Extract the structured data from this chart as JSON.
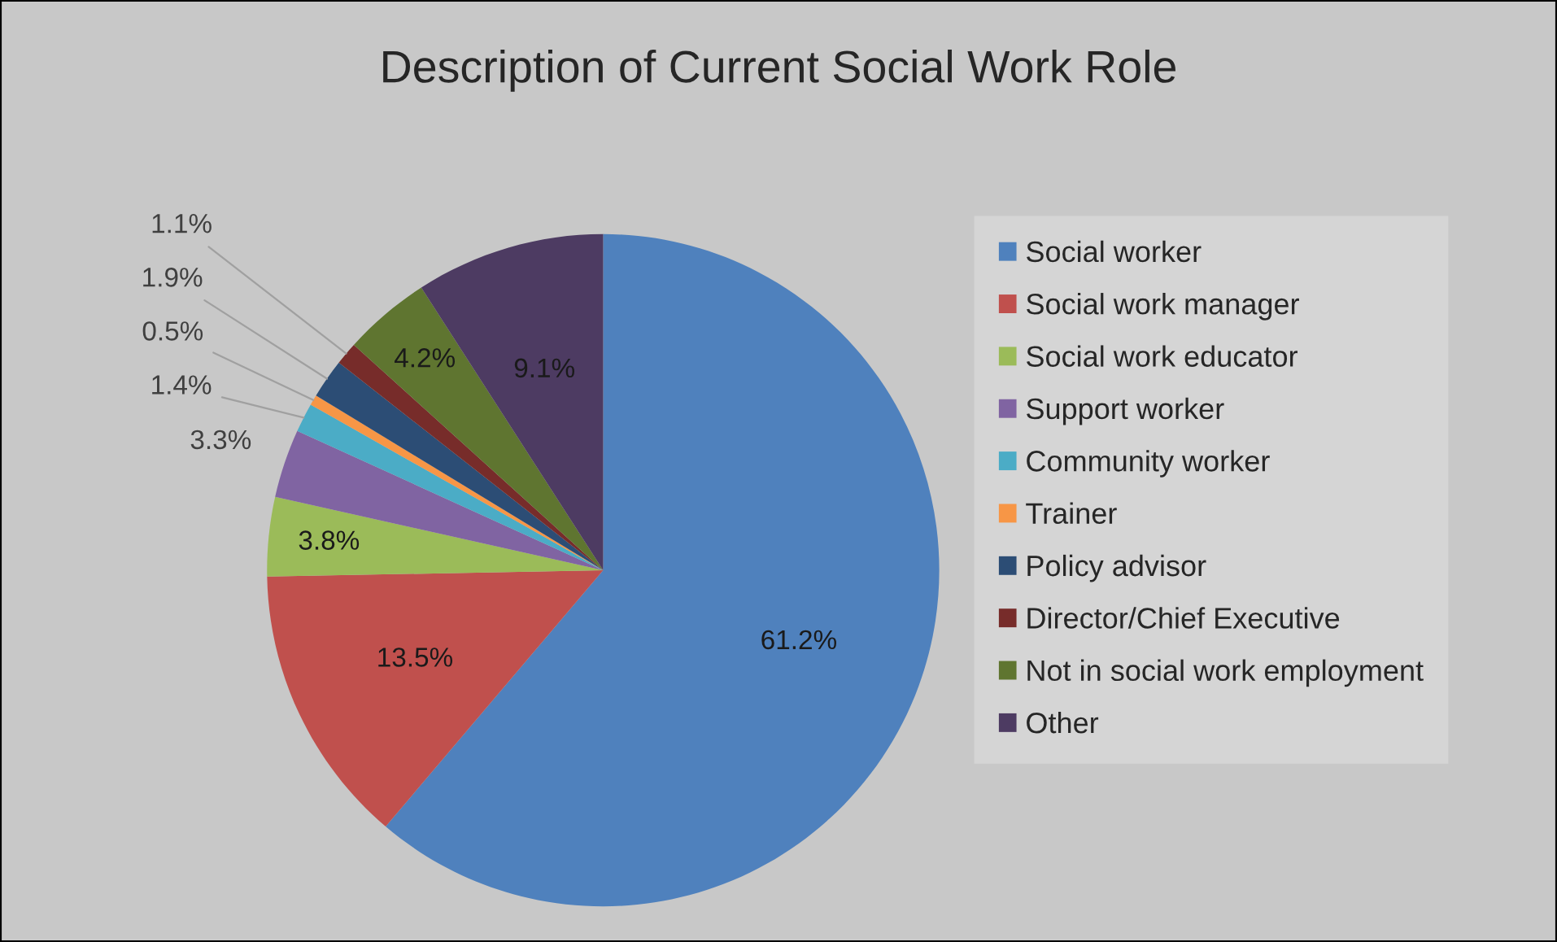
{
  "chart_data": {
    "type": "pie",
    "title": "Description of Current Social Work Role",
    "categories": [
      "Social worker",
      "Social work manager",
      "Social work educator",
      "Support worker",
      "Community worker",
      "Trainer",
      "Policy advisor",
      "Director/Chief Executive",
      "Not in social work employment",
      "Other"
    ],
    "values": [
      61.2,
      13.5,
      3.8,
      3.3,
      1.4,
      0.5,
      1.9,
      1.1,
      4.2,
      9.1
    ],
    "value_labels": [
      "61.2%",
      "13.5%",
      "3.8%",
      "3.3%",
      "1.4%",
      "0.5%",
      "1.9%",
      "1.1%",
      "4.2%",
      "9.1%"
    ],
    "colors": [
      "#4f81bd",
      "#c0504d",
      "#9bbb59",
      "#8064a2",
      "#4bacc6",
      "#f79646",
      "#2c4d75",
      "#772c2a",
      "#5f7530",
      "#4d3b62"
    ],
    "legend": "right"
  }
}
